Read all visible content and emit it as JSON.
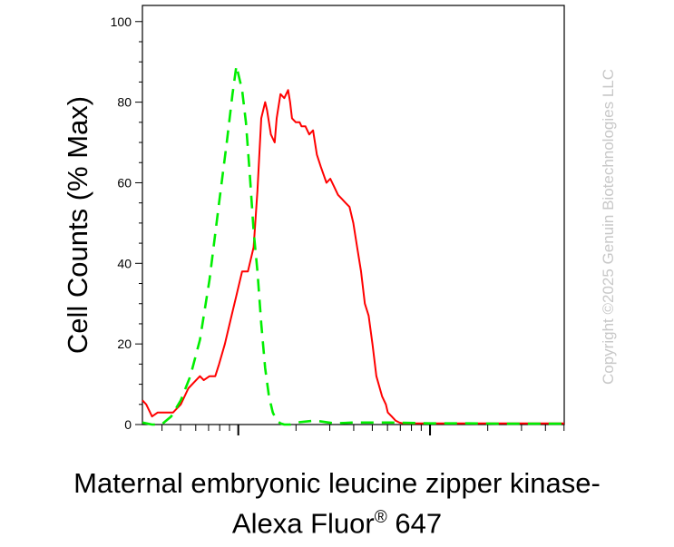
{
  "chart_data": {
    "type": "line",
    "title": "",
    "ylabel": "Cell Counts (% Max)",
    "xlabel_line1": "Maternal embryonic leucine zipper kinase-",
    "xlabel_line2": "Alexa Fluor",
    "xlabel_reg": "®",
    "xlabel_tail": " 647",
    "xscale": "log",
    "xlim_decades": [
      -0.5,
      1.7
    ],
    "ylim": [
      0,
      104
    ],
    "yticks": [
      0,
      20,
      40,
      60,
      80,
      100
    ],
    "ytick_labels": [
      "0",
      "20",
      "40",
      "60",
      "80",
      "100"
    ],
    "grid": false,
    "legend": null,
    "series": [
      {
        "color": "#ff0000",
        "style": "solid",
        "x": [
          -0.5,
          -0.48,
          -0.45,
          -0.42,
          -0.38,
          -0.34,
          -0.3,
          -0.26,
          -0.22,
          -0.2,
          -0.18,
          -0.15,
          -0.12,
          -0.1,
          -0.07,
          -0.04,
          -0.01,
          0.02,
          0.05,
          0.08,
          0.1,
          0.12,
          0.14,
          0.15,
          0.17,
          0.19,
          0.2,
          0.22,
          0.24,
          0.25,
          0.26,
          0.27,
          0.28,
          0.3,
          0.32,
          0.33,
          0.35,
          0.37,
          0.39,
          0.41,
          0.43,
          0.46,
          0.48,
          0.5,
          0.52,
          0.54,
          0.56,
          0.58,
          0.6,
          0.62,
          0.64,
          0.66,
          0.68,
          0.7,
          0.72,
          0.75,
          0.77,
          0.78,
          0.8,
          0.82,
          0.84,
          0.86,
          0.88,
          0.9,
          0.95,
          1.0,
          1.05,
          1.1,
          1.2,
          1.3,
          1.4,
          1.5,
          1.6,
          1.7
        ],
        "y": [
          6,
          5,
          2,
          3,
          3,
          3,
          5,
          9,
          11,
          12,
          11,
          12,
          12,
          15,
          20,
          26,
          32,
          38,
          38,
          44,
          58,
          76,
          80,
          78,
          72,
          70,
          76,
          82,
          81,
          82,
          83,
          80,
          76,
          75,
          75,
          74,
          74,
          72,
          73,
          67,
          64,
          60,
          61,
          59,
          57,
          56,
          55,
          54,
          50,
          44,
          38,
          30,
          27,
          20,
          12,
          7,
          5,
          3,
          2,
          1,
          0.5,
          0.3,
          0.3,
          0.3,
          0.3,
          0.3,
          0.3,
          0.3,
          0.3,
          0.3,
          0.3,
          0.3,
          0.3,
          0.3
        ]
      },
      {
        "color": "#00ee00",
        "style": "dashed",
        "x": [
          -0.5,
          -0.45,
          -0.4,
          -0.35,
          -0.3,
          -0.25,
          -0.2,
          -0.15,
          -0.1,
          -0.06,
          -0.03,
          -0.01,
          0.0,
          0.02,
          0.04,
          0.06,
          0.08,
          0.1,
          0.12,
          0.14,
          0.16,
          0.18,
          0.2,
          0.22,
          0.24,
          0.27,
          0.3,
          0.4,
          0.5,
          0.6,
          0.8,
          1.0,
          1.2,
          1.4,
          1.7
        ],
        "y": [
          0.5,
          0,
          0,
          2,
          6,
          12,
          21,
          36,
          55,
          70,
          82,
          89,
          87,
          83,
          75,
          62,
          48,
          38,
          25,
          14,
          7,
          3,
          1,
          0.3,
          0,
          0,
          0.5,
          1,
          0.3,
          0.5,
          0.5,
          0.3,
          0.3,
          0.2,
          0.2
        ]
      }
    ],
    "watermark": "Copyright ©2025 Genuin Biotechnologies LLC"
  }
}
